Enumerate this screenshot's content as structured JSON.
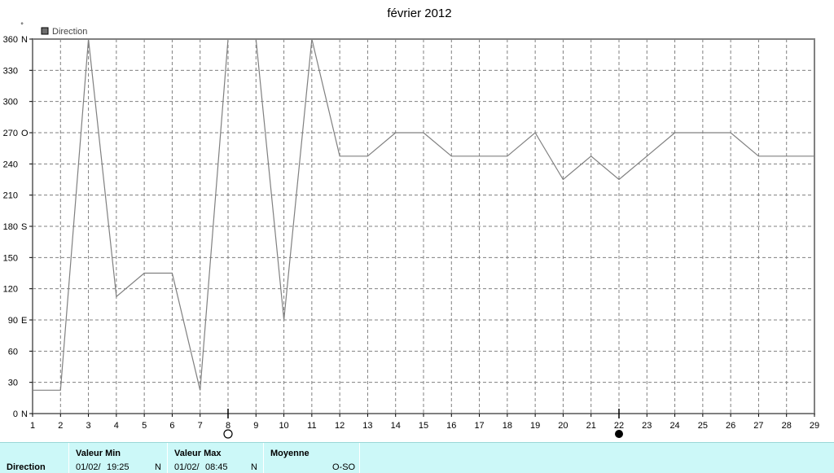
{
  "chart_data": {
    "type": "line",
    "title": "février 2012",
    "unit_label": "°",
    "legend": [
      "Direction"
    ],
    "legend_position": "top-left",
    "colors": {
      "series": "#808080",
      "legend_box": "#6e6e6e",
      "grid": "#808080",
      "axes": "#808080"
    },
    "xlim": [
      1,
      29
    ],
    "ylim": [
      0,
      360
    ],
    "grid": true,
    "x_ticks": [
      "1",
      "2",
      "3",
      "4",
      "5",
      "6",
      "7",
      "8",
      "9",
      "10",
      "11",
      "12",
      "13",
      "14",
      "15",
      "16",
      "17",
      "18",
      "19",
      "20",
      "21",
      "22",
      "23",
      "24",
      "25",
      "26",
      "27",
      "28",
      "29"
    ],
    "y_ticks": [
      {
        "value": 0,
        "label": "0",
        "dir": "N"
      },
      {
        "value": 30,
        "label": "30",
        "dir": ""
      },
      {
        "value": 60,
        "label": "60",
        "dir": ""
      },
      {
        "value": 90,
        "label": "90",
        "dir": "E"
      },
      {
        "value": 120,
        "label": "120",
        "dir": ""
      },
      {
        "value": 150,
        "label": "150",
        "dir": ""
      },
      {
        "value": 180,
        "label": "180",
        "dir": "S"
      },
      {
        "value": 210,
        "label": "210",
        "dir": ""
      },
      {
        "value": 240,
        "label": "240",
        "dir": ""
      },
      {
        "value": 270,
        "label": "270",
        "dir": "O"
      },
      {
        "value": 300,
        "label": "300",
        "dir": ""
      },
      {
        "value": 330,
        "label": "330",
        "dir": ""
      },
      {
        "value": 360,
        "label": "360",
        "dir": "N"
      }
    ],
    "series": [
      {
        "name": "Direction",
        "x": [
          1,
          2,
          3,
          4,
          5,
          6,
          7,
          8,
          9,
          10,
          11,
          12,
          13,
          14,
          15,
          16,
          17,
          18,
          19,
          20,
          21,
          22,
          23,
          24,
          25,
          26,
          27,
          28,
          29
        ],
        "y": [
          22.5,
          22.5,
          360,
          112.5,
          135,
          135,
          22.5,
          360,
          360,
          90,
          360,
          247.5,
          247.5,
          270,
          270,
          247.5,
          247.5,
          247.5,
          270,
          225,
          247.5,
          225,
          247.5,
          270,
          270,
          270,
          247.5,
          247.5,
          247.5
        ]
      }
    ],
    "markers": [
      {
        "x": 8,
        "type": "open-circle"
      },
      {
        "x": 22,
        "type": "filled-circle"
      }
    ]
  },
  "stats": {
    "name": "Direction",
    "min_label": "Valeur Min",
    "min_date": "01/02/",
    "min_time": "19:25",
    "min_value": "N",
    "max_label": "Valeur Max",
    "max_date": "01/02/",
    "max_time": "08:45",
    "max_value": "N",
    "avg_label": "Moyenne",
    "avg_value": "O-SO"
  }
}
